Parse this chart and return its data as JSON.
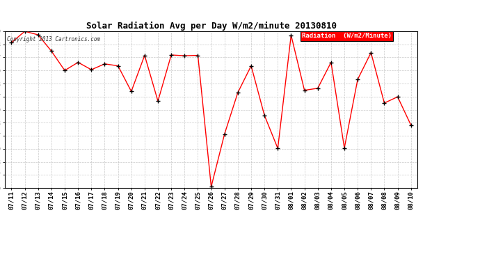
{
  "title": "Solar Radiation Avg per Day W/m2/minute 20130810",
  "copyright": "Copyright 2013 Cartronics.com",
  "legend_label": "Radiation  (W/m2/Minute)",
  "dates": [
    "07/11",
    "07/12",
    "07/13",
    "07/14",
    "07/15",
    "07/16",
    "07/17",
    "07/18",
    "07/19",
    "07/20",
    "07/21",
    "07/22",
    "07/23",
    "07/24",
    "07/25",
    "07/26",
    "07/27",
    "07/28",
    "07/29",
    "07/30",
    "07/31",
    "08/01",
    "08/02",
    "08/03",
    "08/04",
    "08/05",
    "08/06",
    "08/07",
    "08/08",
    "08/09",
    "08/10"
  ],
  "values": [
    481,
    510,
    501,
    459,
    409,
    430,
    411,
    426,
    421,
    355,
    448,
    330,
    449,
    447,
    448,
    109,
    245,
    352,
    421,
    293,
    208,
    500,
    358,
    363,
    430,
    209,
    386,
    455,
    325,
    341,
    268
  ],
  "ylim_min": 106.0,
  "ylim_max": 510.0,
  "yticks": [
    106.0,
    139.7,
    173.3,
    207.0,
    240.7,
    274.3,
    308.0,
    341.7,
    375.3,
    409.0,
    442.7,
    476.3,
    510.0
  ],
  "line_color": "red",
  "marker_color": "black",
  "bg_color": "#ffffff",
  "grid_color": "#bbbbbb",
  "title_color": "#000000",
  "legend_bg": "red",
  "legend_text_color": "white"
}
